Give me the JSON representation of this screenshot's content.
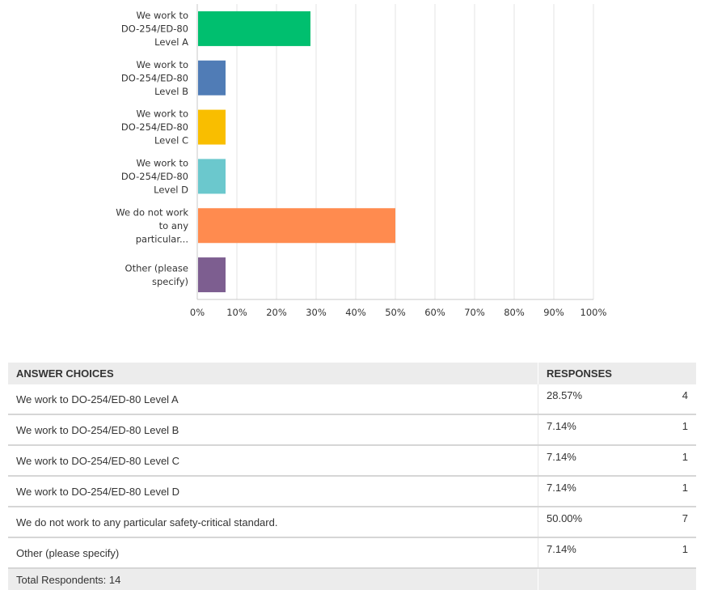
{
  "chart_data": {
    "type": "bar",
    "orientation": "horizontal",
    "categories": [
      [
        "We work to",
        "DO-254/ED-80",
        "Level A"
      ],
      [
        "We work to",
        "DO-254/ED-80",
        "Level B"
      ],
      [
        "We work to",
        "DO-254/ED-80",
        "Level C"
      ],
      [
        "We work to",
        "DO-254/ED-80",
        "Level D"
      ],
      [
        "We do not work",
        "to any",
        "particular..."
      ],
      [
        "Other (please",
        "specify)"
      ]
    ],
    "values": [
      28.57,
      7.14,
      7.14,
      7.14,
      50.0,
      7.14
    ],
    "colors": [
      "#00bf6f",
      "#507cb6",
      "#f9be00",
      "#6bc8cd",
      "#ff8b4f",
      "#7d5e90"
    ],
    "xlim": [
      0,
      100
    ],
    "xticks": [
      "0%",
      "10%",
      "20%",
      "30%",
      "40%",
      "50%",
      "60%",
      "70%",
      "80%",
      "90%",
      "100%"
    ],
    "grid": true,
    "title": "",
    "xlabel": "",
    "ylabel": ""
  },
  "table": {
    "headers": [
      "ANSWER CHOICES",
      "RESPONSES"
    ],
    "rows": [
      {
        "choice": "We work to DO-254/ED-80 Level A",
        "percent": "28.57%",
        "count": "4"
      },
      {
        "choice": "We work to DO-254/ED-80 Level B",
        "percent": "7.14%",
        "count": "1"
      },
      {
        "choice": "We work to DO-254/ED-80 Level C",
        "percent": "7.14%",
        "count": "1"
      },
      {
        "choice": "We work to DO-254/ED-80 Level D",
        "percent": "7.14%",
        "count": "1"
      },
      {
        "choice": "We do not work to any particular safety-critical standard.",
        "percent": "50.00%",
        "count": "7"
      },
      {
        "choice": "Other (please specify)",
        "percent": "7.14%",
        "count": "1"
      }
    ],
    "total": "Total Respondents: 14"
  }
}
